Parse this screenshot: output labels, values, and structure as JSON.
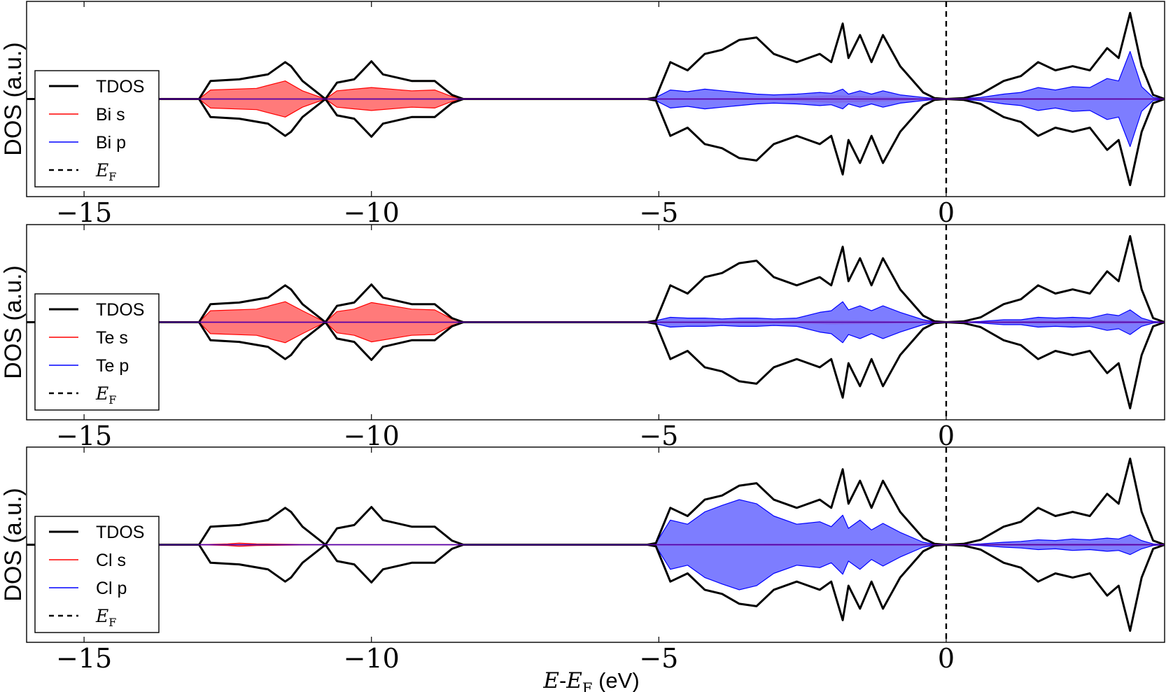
{
  "chart_data": [
    {
      "type": "area",
      "ylabel": "DOS (a.u.)",
      "xlim": [
        -16,
        3.8
      ],
      "xticks": [
        -15,
        -10,
        -5,
        0
      ],
      "xtick_labels": [
        "−15",
        "−10",
        "−5",
        "0"
      ],
      "fermi_level": 0,
      "legend_position": "lower left",
      "legend": [
        {
          "label": "TDOS",
          "color": "#000000",
          "style": "solid"
        },
        {
          "label": "Bi s",
          "color": "#ff0000",
          "style": "solid"
        },
        {
          "label": "Bi p",
          "color": "#0000ff",
          "style": "solid"
        },
        {
          "label": "E",
          "sub": "F",
          "color": "#000000",
          "style": "dashed"
        }
      ],
      "series": [
        {
          "name": "TDOS",
          "color": "#000000",
          "x": [
            -16,
            -14.9,
            -13,
            -12.8,
            -12.3,
            -11.8,
            -11.5,
            -11.4,
            -11.2,
            -10.8,
            -10.6,
            -10.3,
            -10,
            -9.8,
            -9.3,
            -8.9,
            -8.6,
            -8.4,
            -5.8,
            -5.2,
            -5.05,
            -4.8,
            -4.5,
            -4.2,
            -3.9,
            -3.6,
            -3.3,
            -3,
            -2.6,
            -2.2,
            -2,
            -1.8,
            -1.7,
            -1.5,
            -1.3,
            -1.1,
            -0.8,
            -0.4,
            -0.2,
            0,
            0.3,
            0.6,
            1,
            1.3,
            1.6,
            1.9,
            2.2,
            2.5,
            2.8,
            3,
            3.2,
            3.4,
            3.6,
            3.8
          ],
          "values": [
            0,
            0,
            0,
            0.22,
            0.24,
            0.3,
            0.45,
            0.4,
            0.22,
            0,
            0.2,
            0.24,
            0.46,
            0.3,
            0.22,
            0.22,
            0.05,
            0,
            0,
            0,
            0.02,
            0.45,
            0.35,
            0.55,
            0.6,
            0.72,
            0.75,
            0.55,
            0.45,
            0.55,
            0.45,
            0.92,
            0.5,
            0.78,
            0.45,
            0.78,
            0.4,
            0.08,
            0.01,
            0,
            0.01,
            0.06,
            0.22,
            0.28,
            0.45,
            0.35,
            0.4,
            0.35,
            0.62,
            0.5,
            1.05,
            0.4,
            0.05,
            0
          ]
        },
        {
          "name": "Bi s",
          "color": "#ff0000",
          "fill": "#ff6b6b",
          "x": [
            -16,
            -13,
            -12.8,
            -12,
            -11.5,
            -11.2,
            -10.8,
            -10.6,
            -10.3,
            -10,
            -9.3,
            -8.9,
            -8.6,
            -8.4,
            -5.2,
            -4.8,
            -3,
            -2.5,
            -2,
            -1.5,
            -1,
            -0.5,
            0,
            1,
            2,
            3,
            3.8
          ],
          "values": [
            0,
            0,
            0.11,
            0.13,
            0.22,
            0.1,
            0,
            0.1,
            0.12,
            0.14,
            0.1,
            0.11,
            0.03,
            0,
            0,
            0,
            0.005,
            0.02,
            0.04,
            0.03,
            0.02,
            0.005,
            0,
            0.003,
            0.005,
            0.005,
            0
          ]
        },
        {
          "name": "Bi p",
          "color": "#0000ff",
          "fill": "#6f6fff",
          "x": [
            -16,
            -5.2,
            -5.05,
            -4.8,
            -4.5,
            -4.2,
            -3.9,
            -3.6,
            -3.3,
            -3,
            -2.6,
            -2.2,
            -2,
            -1.8,
            -1.7,
            -1.5,
            -1.3,
            -1.1,
            -0.8,
            -0.4,
            -0.2,
            0,
            0.3,
            0.6,
            1,
            1.3,
            1.6,
            1.9,
            2.2,
            2.5,
            2.8,
            3,
            3.2,
            3.4,
            3.6,
            3.8
          ],
          "values": [
            0,
            0,
            0.02,
            0.11,
            0.09,
            0.12,
            0.1,
            0.08,
            0.06,
            0.05,
            0.06,
            0.08,
            0.07,
            0.12,
            0.06,
            0.1,
            0.06,
            0.1,
            0.05,
            0.02,
            0.005,
            0,
            0.005,
            0.02,
            0.06,
            0.08,
            0.14,
            0.11,
            0.15,
            0.14,
            0.25,
            0.22,
            0.58,
            0.15,
            0.02,
            0
          ]
        }
      ]
    },
    {
      "type": "area",
      "ylabel": "DOS (a.u.)",
      "xlim": [
        -16,
        3.8
      ],
      "xticks": [
        -15,
        -10,
        -5,
        0
      ],
      "xtick_labels": [
        "−15",
        "−10",
        "−5",
        "0"
      ],
      "fermi_level": 0,
      "legend_position": "lower left",
      "legend": [
        {
          "label": "TDOS",
          "color": "#000000",
          "style": "solid"
        },
        {
          "label": "Te s",
          "color": "#ff0000",
          "style": "solid"
        },
        {
          "label": "Te p",
          "color": "#0000ff",
          "style": "solid"
        },
        {
          "label": "E",
          "sub": "F",
          "color": "#000000",
          "style": "dashed"
        }
      ],
      "series": [
        {
          "name": "TDOS",
          "color": "#000000",
          "x": [
            -16,
            -14.9,
            -13,
            -12.8,
            -12.3,
            -11.8,
            -11.5,
            -11.4,
            -11.2,
            -10.8,
            -10.6,
            -10.3,
            -10,
            -9.8,
            -9.3,
            -8.9,
            -8.6,
            -8.4,
            -5.8,
            -5.2,
            -5.05,
            -4.8,
            -4.5,
            -4.2,
            -3.9,
            -3.6,
            -3.3,
            -3,
            -2.6,
            -2.2,
            -2,
            -1.8,
            -1.7,
            -1.5,
            -1.3,
            -1.1,
            -0.8,
            -0.4,
            -0.2,
            0,
            0.3,
            0.6,
            1,
            1.3,
            1.6,
            1.9,
            2.2,
            2.5,
            2.8,
            3,
            3.2,
            3.4,
            3.6,
            3.8
          ],
          "values": [
            0,
            0,
            0,
            0.22,
            0.24,
            0.3,
            0.45,
            0.4,
            0.22,
            0,
            0.2,
            0.24,
            0.46,
            0.3,
            0.22,
            0.22,
            0.05,
            0,
            0,
            0,
            0.02,
            0.45,
            0.35,
            0.55,
            0.6,
            0.72,
            0.75,
            0.55,
            0.45,
            0.55,
            0.45,
            0.92,
            0.5,
            0.78,
            0.45,
            0.78,
            0.4,
            0.08,
            0.01,
            0,
            0.01,
            0.06,
            0.22,
            0.28,
            0.45,
            0.35,
            0.4,
            0.35,
            0.62,
            0.5,
            1.05,
            0.4,
            0.05,
            0
          ]
        },
        {
          "name": "Te s",
          "color": "#ff0000",
          "fill": "#ff6b6b",
          "x": [
            -16,
            -13,
            -12.8,
            -12,
            -11.5,
            -11.2,
            -10.8,
            -10.6,
            -10.3,
            -10,
            -9.3,
            -8.9,
            -8.6,
            -8.4,
            -5.2,
            -4.8,
            -3,
            -2.5,
            -2,
            -1.5,
            -1,
            -0.5,
            0,
            1,
            2,
            3,
            3.8
          ],
          "values": [
            0,
            0,
            0.14,
            0.16,
            0.25,
            0.14,
            0,
            0.13,
            0.16,
            0.24,
            0.16,
            0.15,
            0.04,
            0,
            0,
            0,
            0.005,
            0.01,
            0.02,
            0.015,
            0.01,
            0.003,
            0,
            0.005,
            0.01,
            0.015,
            0
          ]
        },
        {
          "name": "Te p",
          "color": "#0000ff",
          "fill": "#6f6fff",
          "x": [
            -16,
            -5.2,
            -5.05,
            -4.8,
            -4.5,
            -4.2,
            -3.9,
            -3.6,
            -3.3,
            -3,
            -2.6,
            -2.2,
            -2,
            -1.8,
            -1.7,
            -1.5,
            -1.3,
            -1.1,
            -0.8,
            -0.4,
            -0.2,
            0,
            0.3,
            0.6,
            1,
            1.3,
            1.6,
            1.9,
            2.2,
            2.5,
            2.8,
            3,
            3.2,
            3.4,
            3.6,
            3.8
          ],
          "values": [
            0,
            0,
            0.02,
            0.06,
            0.05,
            0.05,
            0.04,
            0.05,
            0.05,
            0.04,
            0.05,
            0.12,
            0.14,
            0.25,
            0.15,
            0.2,
            0.14,
            0.2,
            0.12,
            0.03,
            0.005,
            0,
            0.002,
            0.01,
            0.03,
            0.03,
            0.06,
            0.05,
            0.06,
            0.05,
            0.1,
            0.08,
            0.15,
            0.05,
            0.01,
            0
          ]
        }
      ]
    },
    {
      "type": "area",
      "ylabel": "DOS (a.u.)",
      "xlabel": "E-E_F (eV)",
      "xlim": [
        -16,
        3.8
      ],
      "xticks": [
        -15,
        -10,
        -5,
        0
      ],
      "xtick_labels": [
        "−15",
        "−10",
        "−5",
        "0"
      ],
      "fermi_level": 0,
      "legend_position": "lower left",
      "legend": [
        {
          "label": "TDOS",
          "color": "#000000",
          "style": "solid"
        },
        {
          "label": "Cl s",
          "color": "#ff0000",
          "style": "solid"
        },
        {
          "label": "Cl p",
          "color": "#0000ff",
          "style": "solid"
        },
        {
          "label": "E",
          "sub": "F",
          "color": "#000000",
          "style": "dashed"
        }
      ],
      "series": [
        {
          "name": "TDOS",
          "color": "#000000",
          "x": [
            -16,
            -14.9,
            -13,
            -12.8,
            -12.3,
            -11.8,
            -11.5,
            -11.4,
            -11.2,
            -10.8,
            -10.6,
            -10.3,
            -10,
            -9.8,
            -9.3,
            -8.9,
            -8.6,
            -8.4,
            -5.8,
            -5.2,
            -5.05,
            -4.8,
            -4.5,
            -4.2,
            -3.9,
            -3.6,
            -3.3,
            -3,
            -2.6,
            -2.2,
            -2,
            -1.8,
            -1.7,
            -1.5,
            -1.3,
            -1.1,
            -0.8,
            -0.4,
            -0.2,
            0,
            0.3,
            0.6,
            1,
            1.3,
            1.6,
            1.9,
            2.2,
            2.5,
            2.8,
            3,
            3.2,
            3.4,
            3.6,
            3.8
          ],
          "values": [
            0,
            0,
            0,
            0.22,
            0.24,
            0.3,
            0.45,
            0.4,
            0.22,
            0,
            0.2,
            0.24,
            0.46,
            0.3,
            0.22,
            0.22,
            0.05,
            0,
            0,
            0,
            0.02,
            0.45,
            0.35,
            0.55,
            0.6,
            0.72,
            0.75,
            0.55,
            0.45,
            0.55,
            0.45,
            0.92,
            0.5,
            0.78,
            0.45,
            0.78,
            0.4,
            0.08,
            0.01,
            0,
            0.01,
            0.06,
            0.22,
            0.28,
            0.45,
            0.35,
            0.4,
            0.35,
            0.62,
            0.5,
            1.05,
            0.4,
            0.05,
            0
          ]
        },
        {
          "name": "Cl s",
          "color": "#ff0000",
          "fill": "#ff6b6b",
          "x": [
            -16,
            -13,
            -12.5,
            -12.3,
            -12,
            -11.5,
            -11,
            -10.8,
            -8.4,
            -5.2,
            -4.8,
            -4,
            -3,
            -2,
            -1,
            0,
            1,
            2,
            3,
            3.8
          ],
          "values": [
            0,
            0,
            0.01,
            0.02,
            0.01,
            0.005,
            0.002,
            0,
            0,
            0,
            0.003,
            0.006,
            0.008,
            0.006,
            0.004,
            0,
            0.005,
            0.01,
            0.01,
            0
          ]
        },
        {
          "name": "Cl p",
          "color": "#0000ff",
          "fill": "#6f6fff",
          "x": [
            -16,
            -5.2,
            -5.05,
            -4.8,
            -4.5,
            -4.2,
            -3.9,
            -3.6,
            -3.3,
            -3,
            -2.6,
            -2.2,
            -2,
            -1.8,
            -1.7,
            -1.5,
            -1.3,
            -1.1,
            -0.8,
            -0.4,
            -0.2,
            0,
            0.3,
            0.6,
            1,
            1.3,
            1.6,
            1.9,
            2.2,
            2.5,
            2.8,
            3,
            3.2,
            3.4,
            3.6,
            3.8
          ],
          "values": [
            0,
            0,
            0.02,
            0.3,
            0.25,
            0.4,
            0.48,
            0.55,
            0.5,
            0.35,
            0.25,
            0.28,
            0.22,
            0.36,
            0.2,
            0.3,
            0.18,
            0.26,
            0.15,
            0.03,
            0.005,
            0,
            0.002,
            0.01,
            0.03,
            0.04,
            0.06,
            0.05,
            0.07,
            0.06,
            0.08,
            0.07,
            0.12,
            0.05,
            0.01,
            0
          ]
        }
      ]
    }
  ]
}
